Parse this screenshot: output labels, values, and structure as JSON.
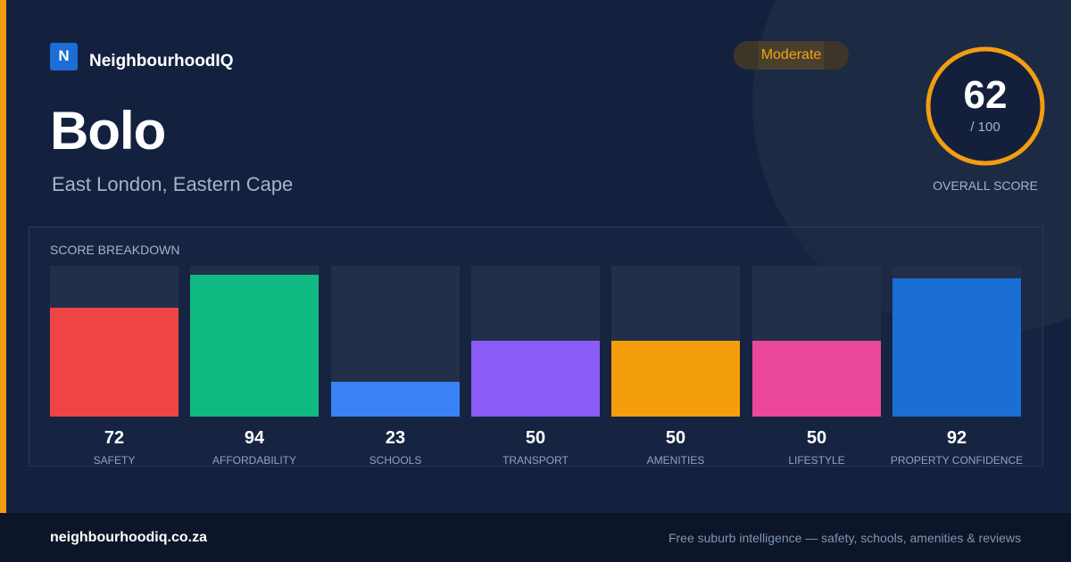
{
  "brand": {
    "logo_letter": "N",
    "name": "NeighbourhoodIQ",
    "color": "#1b6ed6"
  },
  "suburb": {
    "name": "Bolo",
    "region": "East London, Eastern Cape"
  },
  "rating": {
    "label": "Moderate",
    "color": "#f4a416"
  },
  "overall": {
    "score": "62",
    "max": "/ 100",
    "caption": "OVERALL SCORE",
    "value": 62,
    "ring_color": "#f29d12"
  },
  "breakdown": {
    "title": "SCORE BREAKDOWN",
    "items": [
      {
        "label": "SAFETY",
        "value": 72,
        "color": "#ef4444"
      },
      {
        "label": "AFFORDABILITY",
        "value": 94,
        "color": "#10b981"
      },
      {
        "label": "SCHOOLS",
        "value": 23,
        "color": "#3b82f6"
      },
      {
        "label": "TRANSPORT",
        "value": 50,
        "color": "#8b5cf6"
      },
      {
        "label": "AMENITIES",
        "value": 50,
        "color": "#f59e0b"
      },
      {
        "label": "LIFESTYLE",
        "value": 50,
        "color": "#ec4899"
      },
      {
        "label": "PROPERTY CONFIDENCE",
        "value": 92,
        "color": "#1b6ed6"
      }
    ]
  },
  "footer": {
    "domain": "neighbourhoodiq.co.za",
    "tagline": "Free suburb intelligence — safety, schools, amenities & reviews"
  }
}
